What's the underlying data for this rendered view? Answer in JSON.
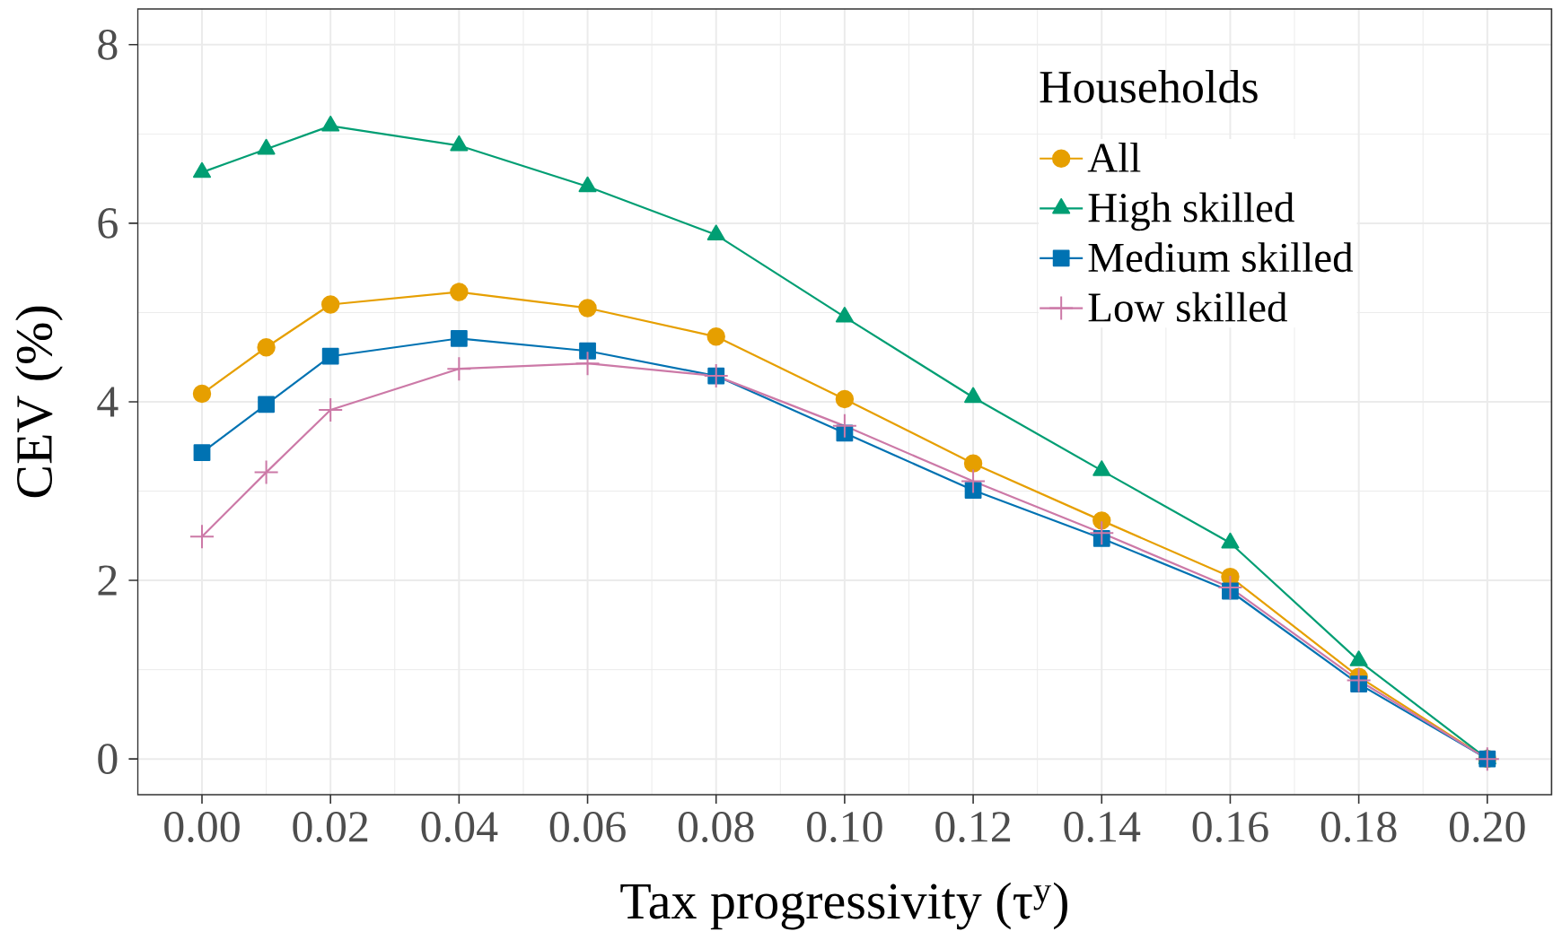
{
  "chart_data": {
    "type": "line",
    "xlabel": "Tax progressivity (τ$^{y}$)",
    "ylabel": "CEV (%)",
    "legend_title": "Households",
    "x": [
      0,
      0.01,
      0.02,
      0.04,
      0.06,
      0.08,
      0.1,
      0.12,
      0.14,
      0.16,
      0.18,
      0.2
    ],
    "series": [
      {
        "name": "All",
        "color": "#e69f00",
        "marker": "circle",
        "values": [
          4.09,
          4.61,
          5.09,
          5.23,
          5.05,
          4.73,
          4.03,
          3.31,
          2.67,
          2.04,
          0.92,
          0
        ]
      },
      {
        "name": "High skilled",
        "color": "#009e73",
        "marker": "triangle",
        "values": [
          6.57,
          6.83,
          7.09,
          6.87,
          6.41,
          5.87,
          4.95,
          4.05,
          3.23,
          2.42,
          1.1,
          0
        ]
      },
      {
        "name": "Medium skilled",
        "color": "#0072b2",
        "marker": "square",
        "values": [
          3.43,
          3.97,
          4.51,
          4.71,
          4.57,
          4.29,
          3.65,
          3.01,
          2.47,
          1.88,
          0.84,
          0
        ]
      },
      {
        "name": "Low skilled",
        "color": "#cc79a7",
        "marker": "cross",
        "values": [
          2.49,
          3.21,
          3.91,
          4.37,
          4.43,
          4.29,
          3.73,
          3.11,
          2.53,
          1.92,
          0.88,
          0
        ]
      }
    ],
    "xlim": [
      -0.01,
      0.21
    ],
    "ylim": [
      -0.4,
      8.4
    ],
    "xticks": [
      {
        "value": 0,
        "label": "0.00"
      },
      {
        "value": 0.02,
        "label": "0.02"
      },
      {
        "value": 0.04,
        "label": "0.04"
      },
      {
        "value": 0.06,
        "label": "0.06"
      },
      {
        "value": 0.08,
        "label": "0.08"
      },
      {
        "value": 0.1,
        "label": "0.10"
      },
      {
        "value": 0.12,
        "label": "0.12"
      },
      {
        "value": 0.14,
        "label": "0.14"
      },
      {
        "value": 0.16,
        "label": "0.16"
      },
      {
        "value": 0.18,
        "label": "0.18"
      },
      {
        "value": 0.2,
        "label": "0.20"
      }
    ],
    "yticks": [
      0,
      2,
      4,
      6,
      8
    ],
    "grid": true,
    "legend": "top right",
    "line_style": "solid"
  }
}
